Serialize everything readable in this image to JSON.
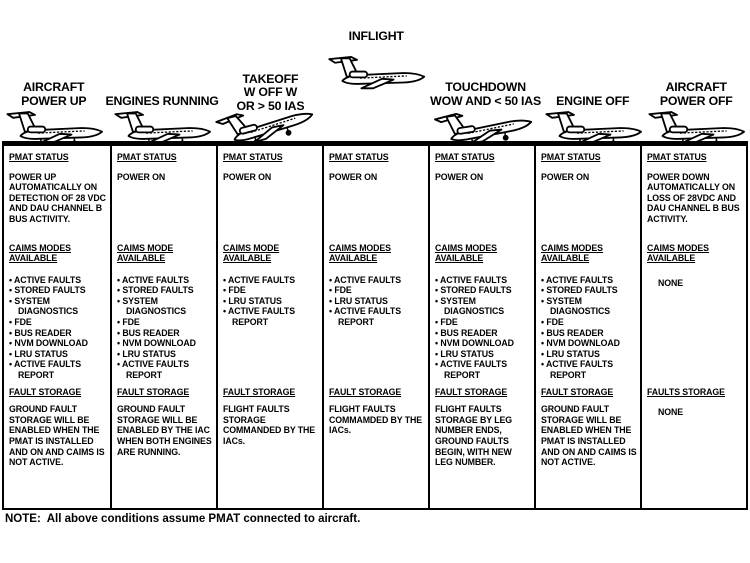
{
  "colors": {
    "ink": "#000000",
    "paper": "#ffffff"
  },
  "note": "NOTE:  All above conditions assume PMAT connected to aircraft.",
  "phases": [
    {
      "id": "aircraft-power-up",
      "label_lines": [
        "AIRCRAFT",
        "POWER UP"
      ],
      "attitude": "ground",
      "pmat_header": "PMAT STATUS",
      "pmat_body": "POWER UP AUTOMATICALLY ON DETECTION OF 28 VDC AND DAU CHANNEL B BUS ACTIVITY.",
      "caims_header": "CAIMS MODES AVAILABLE",
      "caims_items": [
        "ACTIVE FAULTS",
        "STORED FAULTS",
        "SYSTEM DIAGNOSTICS",
        "FDE",
        "BUS READER",
        "NVM DOWNLOAD",
        "LRU STATUS",
        "ACTIVE FAULTS REPORT"
      ],
      "fault_header": "FAULT STORAGE",
      "fault_body": "GROUND FAULT STORAGE WILL BE ENABLED WHEN THE PMAT IS INSTALLED AND ON AND CAIMS IS NOT ACTIVE."
    },
    {
      "id": "engines-running",
      "label_lines": [
        "ENGINES RUNNING"
      ],
      "attitude": "ground",
      "pmat_header": "PMAT STATUS",
      "pmat_body": "POWER ON",
      "caims_header": "CAIMS MODE AVAILABLE",
      "caims_items": [
        "ACTIVE FAULTS",
        "STORED FAULTS",
        "SYSTEM DIAGNOSTICS",
        "FDE",
        "BUS READER",
        "NVM DOWNLOAD",
        "LRU STATUS",
        "ACTIVE FAULTS REPORT"
      ],
      "fault_header": "FAULT STORAGE",
      "fault_body": "GROUND FAULT STORAGE WILL BE ENABLED BY THE IAC WHEN BOTH ENGINES ARE RUNNING."
    },
    {
      "id": "takeoff",
      "label_lines": [
        "TAKEOFF",
        "W OFF W",
        "OR > 50 IAS"
      ],
      "attitude": "climb",
      "pmat_header": "PMAT STATUS",
      "pmat_body": "POWER ON",
      "caims_header": "CAIMS MODE AVAILABLE",
      "caims_items": [
        "ACTIVE FAULTS",
        "FDE",
        "LRU STATUS",
        "ACTIVE FAULTS REPORT"
      ],
      "fault_header": "FAULT STORAGE",
      "fault_body": "FLIGHT FAULTS STORAGE COMMANDED BY THE IACs."
    },
    {
      "id": "inflight",
      "label_lines": [
        "INFLIGHT"
      ],
      "attitude": "cruise",
      "pmat_header": "PMAT STATUS",
      "pmat_body": "POWER ON",
      "caims_header": "CAIMS MODES AVAILABLE",
      "caims_items": [
        "ACTIVE FAULTS",
        "FDE",
        "LRU STATUS",
        "ACTIVE FAULTS REPORT"
      ],
      "fault_header": "FAULT STORAGE",
      "fault_body": "FLIGHT FAULTS COMMAMDED BY THE IACs."
    },
    {
      "id": "touchdown",
      "label_lines": [
        "TOUCHDOWN",
        "WOW AND < 50 IAS"
      ],
      "attitude": "descent",
      "pmat_header": "PMAT STATUS",
      "pmat_body": "POWER ON",
      "caims_header": "CAIMS MODES AVAILABLE",
      "caims_items": [
        "ACTIVE FAULTS",
        "STORED FAULTS",
        "SYSTEM DIAGNOSTICS",
        "FDE",
        "BUS READER",
        "NVM DOWNLOAD",
        "LRU STATUS",
        "ACTIVE FAULTS REPORT"
      ],
      "fault_header": "FAULT STORAGE",
      "fault_body": "FLIGHT FAULTS STORAGE BY LEG NUMBER ENDS, GROUND FAULTS BEGIN, WITH NEW LEG NUMBER."
    },
    {
      "id": "engine-off",
      "label_lines": [
        "ENGINE OFF"
      ],
      "attitude": "ground",
      "pmat_header": "PMAT STATUS",
      "pmat_body": "POWER ON",
      "caims_header": "CAIMS MODES AVAILABLE",
      "caims_items": [
        "ACTIVE FAULTS",
        "STORED FAULTS",
        "SYSTEM DIAGNOSTICS",
        "FDE",
        "BUS READER",
        "NVM DOWNLOAD",
        "LRU STATUS",
        "ACTIVE FAULTS REPORT"
      ],
      "fault_header": "FAULT STORAGE",
      "fault_body": "GROUND FAULT STORAGE WILL BE ENABLED WHEN THE PMAT IS INSTALLED AND ON AND CAIMS IS NOT ACTIVE."
    },
    {
      "id": "aircraft-power-off",
      "label_lines": [
        "AIRCRAFT",
        "POWER OFF"
      ],
      "attitude": "ground",
      "pmat_header": "PMAT STATUS",
      "pmat_body": "POWER DOWN AUTOMATICALLY ON LOSS OF 28VDC AND DAU CHANNEL B BUS ACTIVITY.",
      "caims_header": "CAIMS MODES AVAILABLE",
      "caims_items": [],
      "caims_none": "NONE",
      "fault_header": "FAULTS STORAGE",
      "fault_body": "NONE"
    }
  ]
}
